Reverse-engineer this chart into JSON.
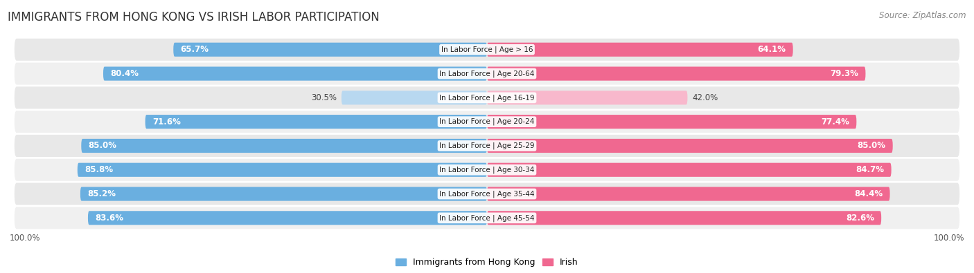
{
  "title": "IMMIGRANTS FROM HONG KONG VS IRISH LABOR PARTICIPATION",
  "source": "Source: ZipAtlas.com",
  "categories": [
    "In Labor Force | Age > 16",
    "In Labor Force | Age 20-64",
    "In Labor Force | Age 16-19",
    "In Labor Force | Age 20-24",
    "In Labor Force | Age 25-29",
    "In Labor Force | Age 30-34",
    "In Labor Force | Age 35-44",
    "In Labor Force | Age 45-54"
  ],
  "hk_values": [
    65.7,
    80.4,
    30.5,
    71.6,
    85.0,
    85.8,
    85.2,
    83.6
  ],
  "irish_values": [
    64.1,
    79.3,
    42.0,
    77.4,
    85.0,
    84.7,
    84.4,
    82.6
  ],
  "hk_color": "#6aafe0",
  "hk_color_light": "#b8d8f0",
  "irish_color": "#f06890",
  "irish_color_light": "#f8b8cc",
  "row_bg_color": "#e8e8e8",
  "row_bg_color2": "#f0f0f0",
  "label_hk": "Immigrants from Hong Kong",
  "label_irish": "Irish",
  "axis_label_left": "100.0%",
  "axis_label_right": "100.0%",
  "max_value": 100.0,
  "title_fontsize": 12,
  "bar_label_fontsize": 8.5,
  "category_fontsize": 7.5,
  "legend_fontsize": 9,
  "source_fontsize": 8.5
}
